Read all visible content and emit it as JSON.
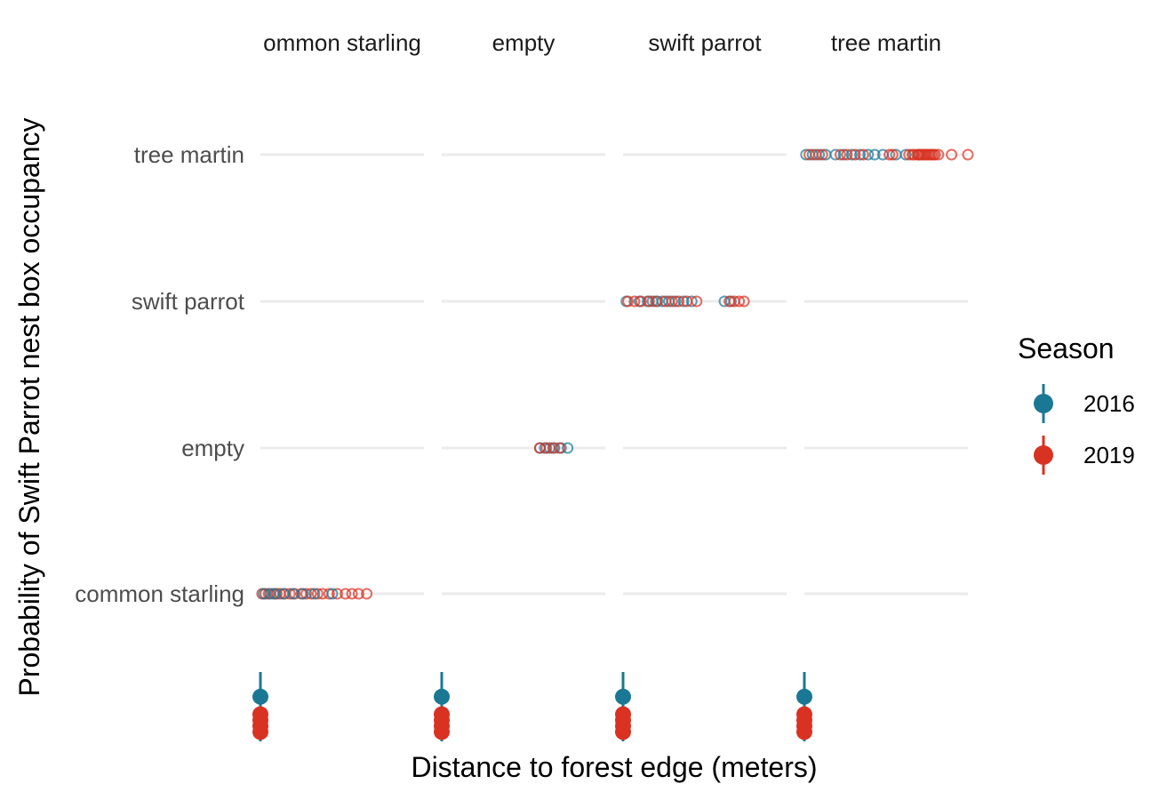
{
  "chart_data": {
    "type": "scatter",
    "title": "",
    "xlabel": "Distance to forest edge (meters)",
    "ylabel": "Probability of Swift Parrot nest box occupancy",
    "facets": [
      "common starling",
      "empty",
      "swift parrot",
      "tree martin"
    ],
    "facet_labels": [
      "ommon starling",
      "empty",
      "swift parrot",
      "tree martin"
    ],
    "categories": [
      "tree martin",
      "swift parrot",
      "empty",
      "common starling"
    ],
    "grid": true,
    "legend": {
      "title": "Season",
      "position": "right"
    },
    "series": [
      {
        "name": "2016",
        "color": "#1B7895"
      },
      {
        "name": "2019",
        "color": "#D93222"
      }
    ],
    "points": [
      {
        "facet": "common starling",
        "category": "common starling",
        "season": "2019",
        "x": [
          0.01,
          0.03,
          0.05,
          0.08,
          0.1,
          0.12,
          0.15,
          0.18,
          0.21,
          0.25,
          0.28,
          0.31,
          0.35,
          0.38,
          0.42,
          0.47,
          0.52,
          0.56,
          0.6,
          0.65
        ]
      },
      {
        "facet": "common starling",
        "category": "common starling",
        "season": "2016",
        "x": [
          0.02,
          0.06,
          0.09,
          0.14,
          0.2,
          0.26,
          0.33,
          0.44
        ]
      },
      {
        "facet": "empty",
        "category": "empty",
        "season": "2016",
        "x": [
          0.6,
          0.63,
          0.66,
          0.69,
          0.73,
          0.77
        ]
      },
      {
        "facet": "empty",
        "category": "empty",
        "season": "2019",
        "x": [
          0.6,
          0.64,
          0.68,
          0.72
        ]
      },
      {
        "facet": "swift parrot",
        "category": "swift parrot",
        "season": "2016",
        "x": [
          0.02,
          0.1,
          0.15,
          0.18,
          0.21,
          0.24,
          0.28,
          0.32,
          0.37,
          0.42,
          0.62,
          0.66
        ]
      },
      {
        "facet": "swift parrot",
        "category": "swift parrot",
        "season": "2019",
        "x": [
          0.03,
          0.07,
          0.11,
          0.16,
          0.2,
          0.26,
          0.3,
          0.34,
          0.39,
          0.45,
          0.65,
          0.68,
          0.71,
          0.74
        ]
      },
      {
        "facet": "tree martin",
        "category": "tree martin",
        "season": "2016",
        "x": [
          0.01,
          0.05,
          0.09,
          0.13,
          0.19,
          0.24,
          0.29,
          0.34,
          0.39,
          0.43,
          0.48,
          0.56,
          0.62,
          0.7
        ]
      },
      {
        "facet": "tree martin",
        "category": "tree martin",
        "season": "2019",
        "x": [
          0.03,
          0.07,
          0.11,
          0.22,
          0.26,
          0.31,
          0.36,
          0.52,
          0.54,
          0.64,
          0.66,
          0.67,
          0.69,
          0.7,
          0.71,
          0.72,
          0.73,
          0.74,
          0.75,
          0.76,
          0.77,
          0.78,
          0.79,
          0.8,
          0.82,
          0.9,
          1.0
        ]
      }
    ],
    "rug": [
      {
        "season": "2016",
        "y": [
          0.3
        ]
      },
      {
        "season": "2019",
        "y": [
          0.6,
          0.7,
          0.8,
          0.9
        ]
      }
    ]
  }
}
